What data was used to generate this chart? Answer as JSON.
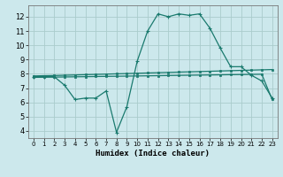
{
  "title": "",
  "xlabel": "Humidex (Indice chaleur)",
  "bg_color": "#cce8ec",
  "grid_color": "#aacccc",
  "line_color": "#1a7a6e",
  "x_values": [
    0,
    1,
    2,
    3,
    4,
    5,
    6,
    7,
    8,
    9,
    10,
    11,
    12,
    13,
    14,
    15,
    16,
    17,
    18,
    19,
    20,
    21,
    22,
    23
  ],
  "line1": [
    7.8,
    7.8,
    7.8,
    7.2,
    6.2,
    6.3,
    6.3,
    6.8,
    3.9,
    5.7,
    8.9,
    11.0,
    12.2,
    12.0,
    12.2,
    12.1,
    12.2,
    11.2,
    9.8,
    8.5,
    8.5,
    7.9,
    7.5,
    6.3
  ],
  "line2": [
    7.85,
    7.87,
    7.88,
    7.9,
    7.92,
    7.94,
    7.96,
    7.98,
    8.0,
    8.02,
    8.04,
    8.06,
    8.08,
    8.1,
    8.12,
    8.14,
    8.16,
    8.18,
    8.2,
    8.22,
    8.24,
    8.26,
    8.28,
    8.3
  ],
  "line3": [
    7.75,
    7.76,
    7.77,
    7.78,
    7.79,
    7.8,
    7.81,
    7.82,
    7.83,
    7.84,
    7.85,
    7.86,
    7.87,
    7.88,
    7.89,
    7.9,
    7.91,
    7.92,
    7.93,
    7.94,
    7.95,
    7.96,
    7.97,
    6.2
  ],
  "ylim": [
    3.5,
    12.8
  ],
  "xlim": [
    -0.5,
    23.5
  ],
  "yticks": [
    4,
    5,
    6,
    7,
    8,
    9,
    10,
    11,
    12
  ],
  "xticks": [
    0,
    1,
    2,
    3,
    4,
    5,
    6,
    7,
    8,
    9,
    10,
    11,
    12,
    13,
    14,
    15,
    16,
    17,
    18,
    19,
    20,
    21,
    22,
    23
  ]
}
